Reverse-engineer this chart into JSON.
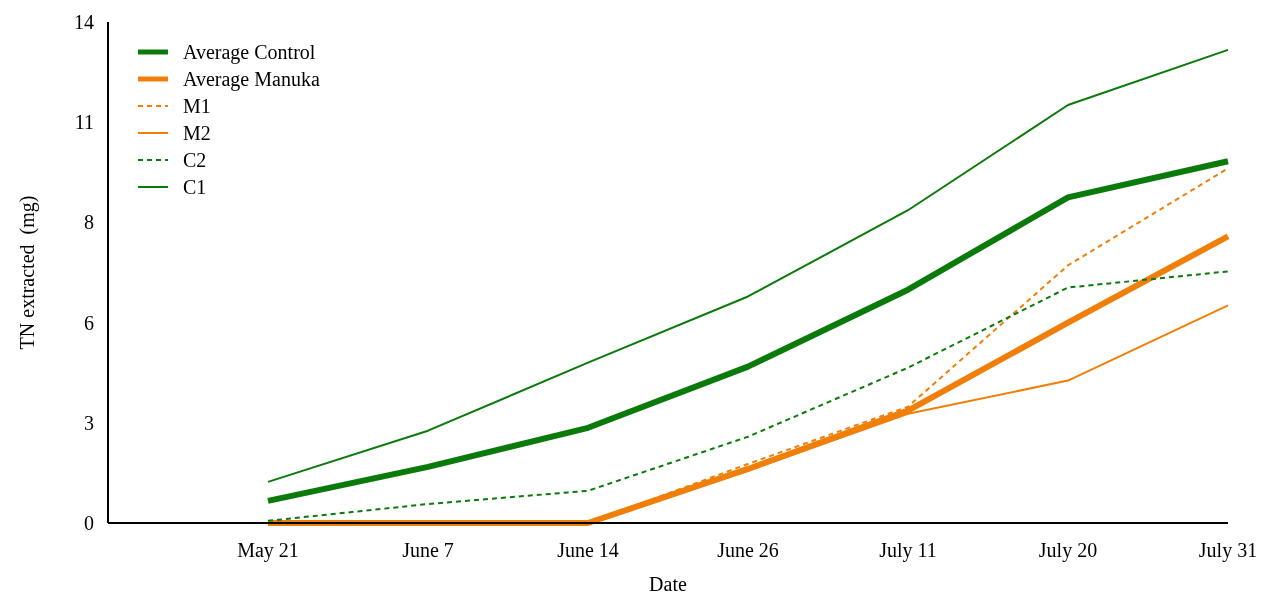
{
  "chart_data": {
    "type": "line",
    "xlabel": "Date",
    "ylabel": "TN extracted  (mg)",
    "categories": [
      "May 21",
      "June 7",
      "June 14",
      "June 26",
      "July 11",
      "July 20",
      "July 31"
    ],
    "ylim": [
      0,
      14
    ],
    "yticks": [
      0,
      {
        "value": 2.8,
        "label": "3"
      },
      {
        "value": 5.6,
        "label": "6"
      },
      {
        "value": 8.4,
        "label": "8"
      },
      {
        "value": 11.2,
        "label": "11"
      },
      14
    ],
    "grid": false,
    "legend": "top left",
    "marker": "none",
    "series": [
      {
        "name": "Average Control",
        "color": "#0a7a0a",
        "line_style": "solid",
        "values": [
          0.62,
          1.57,
          2.66,
          4.37,
          6.52,
          9.1,
          10.11
        ]
      },
      {
        "name": "Average Manuka",
        "color": "#f07f09",
        "line_style": "solid",
        "values": [
          0,
          0,
          0,
          1.51,
          3.14,
          5.6,
          8.01
        ]
      },
      {
        "name": "M1",
        "color": "#f07f09",
        "line_style": "dashed",
        "values": [
          0,
          0,
          0,
          1.65,
          3.25,
          7.2,
          9.91
        ]
      },
      {
        "name": "M2",
        "color": "#f07f09",
        "line_style": "solid",
        "values": [
          0,
          0,
          0,
          1.46,
          3.05,
          3.98,
          6.08
        ]
      },
      {
        "name": "C2",
        "color": "#0a7a0a",
        "line_style": "dashed",
        "values": [
          0.06,
          0.53,
          0.9,
          2.41,
          4.34,
          6.58,
          7.03
        ]
      },
      {
        "name": "C1",
        "color": "#0a7a0a",
        "line_style": "solid",
        "values": [
          1.15,
          2.58,
          4.48,
          6.33,
          8.74,
          11.68,
          13.22
        ]
      }
    ]
  }
}
